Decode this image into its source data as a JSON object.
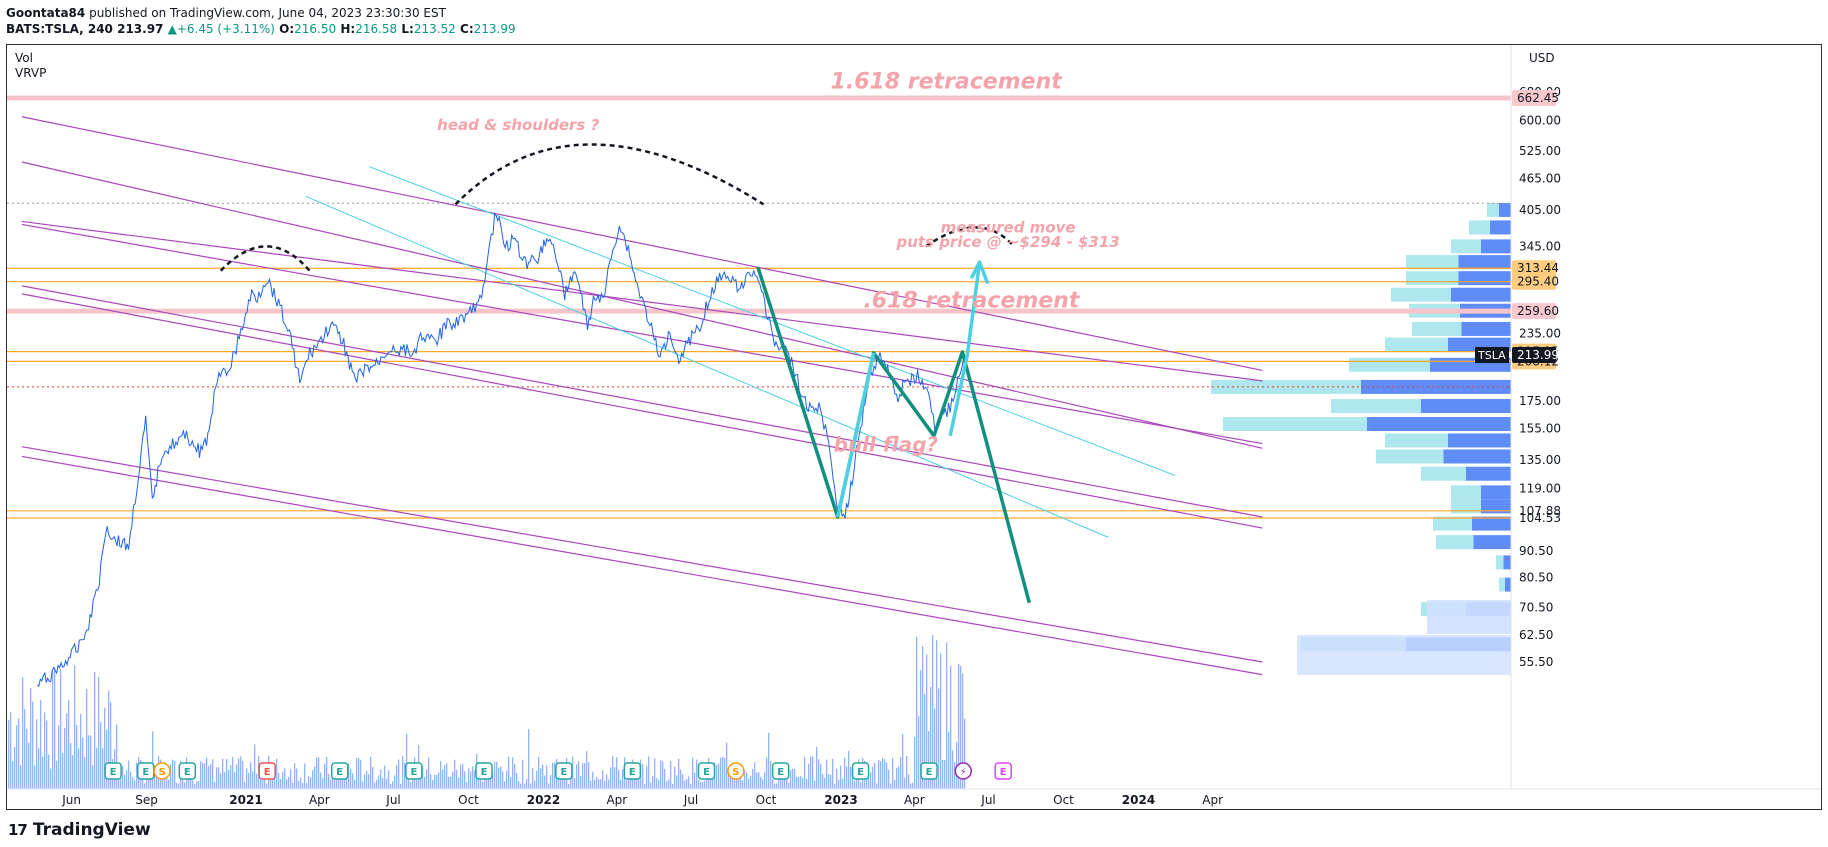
{
  "header": {
    "publisher": "Goontata84",
    "published_text": "published on TradingView.com, June 04, 2023 23:30:30 EST",
    "symbol": "BATS:TSLA, 240",
    "last": "213.97",
    "change": "+6.45 (+3.11%)",
    "open_label": "O:",
    "open": "216.50",
    "high_label": "H:",
    "high": "216.58",
    "low_label": "L:",
    "low": "213.52",
    "close_label": "C:",
    "close": "213.99"
  },
  "indicators": [
    "Vol",
    "VRVP"
  ],
  "footer": {
    "brand": "TradingView"
  },
  "chart_data": {
    "type": "line",
    "title": "",
    "currency": "USD",
    "y_scale": "log",
    "ylim": [
      50,
      760
    ],
    "y_ticks": [
      55.5,
      62.5,
      70.5,
      80.5,
      90.5,
      104.53,
      107.88,
      119,
      135,
      155,
      175,
      208.12,
      217.25,
      235,
      259.6,
      295.4,
      313.44,
      345,
      405,
      465,
      525,
      600,
      662.45,
      680
    ],
    "y_tick_labels": [
      "55.50",
      "62.50",
      "70.50",
      "80.50",
      "90.50",
      "104.53",
      "107.88",
      "119.00",
      "135.00",
      "155.00",
      "175.00",
      "208.12",
      "217.25",
      "235.00",
      "259.60",
      "295.40",
      "313.44",
      "345.00",
      "405.00",
      "465.00",
      "525.00",
      "600.00",
      "662.45",
      "680.00"
    ],
    "x_labels": [
      "Jun",
      "Sep",
      "2021",
      "Apr",
      "Jul",
      "Oct",
      "2022",
      "Apr",
      "Jul",
      "Oct",
      "2023",
      "Apr",
      "Jul",
      "Oct",
      "2024",
      "Apr"
    ],
    "x_ticks": [
      "2020-06-01",
      "2020-09-01",
      "2021-01-01",
      "2021-04-01",
      "2021-07-01",
      "2021-10-01",
      "2022-01-01",
      "2022-04-01",
      "2022-07-01",
      "2022-10-01",
      "2023-01-01",
      "2023-04-01",
      "2023-07-01",
      "2023-10-01",
      "2024-01-01",
      "2024-04-01"
    ],
    "price_series": {
      "name": "TSLA",
      "points": [
        [
          "2020-04-20",
          50
        ],
        [
          "2020-05-10",
          53
        ],
        [
          "2020-06-01",
          57
        ],
        [
          "2020-06-20",
          64
        ],
        [
          "2020-07-05",
          80
        ],
        [
          "2020-07-13",
          100
        ],
        [
          "2020-07-25",
          95
        ],
        [
          "2020-08-10",
          92
        ],
        [
          "2020-08-20",
          120
        ],
        [
          "2020-08-31",
          160
        ],
        [
          "2020-09-08",
          112
        ],
        [
          "2020-09-20",
          140
        ],
        [
          "2020-10-05",
          145
        ],
        [
          "2020-10-20",
          150
        ],
        [
          "2020-11-05",
          140
        ],
        [
          "2020-11-17",
          150
        ],
        [
          "2020-11-25",
          190
        ],
        [
          "2020-12-10",
          200
        ],
        [
          "2020-12-20",
          220
        ],
        [
          "2021-01-08",
          280
        ],
        [
          "2021-01-15",
          275
        ],
        [
          "2021-01-26",
          300
        ],
        [
          "2021-02-10",
          270
        ],
        [
          "2021-02-25",
          230
        ],
        [
          "2021-03-08",
          190
        ],
        [
          "2021-03-20",
          215
        ],
        [
          "2021-04-05",
          230
        ],
        [
          "2021-04-15",
          245
        ],
        [
          "2021-05-01",
          225
        ],
        [
          "2021-05-15",
          190
        ],
        [
          "2021-05-25",
          200
        ],
        [
          "2021-06-10",
          205
        ],
        [
          "2021-06-25",
          220
        ],
        [
          "2021-07-10",
          220
        ],
        [
          "2021-07-25",
          215
        ],
        [
          "2021-08-05",
          235
        ],
        [
          "2021-08-20",
          225
        ],
        [
          "2021-09-05",
          245
        ],
        [
          "2021-09-20",
          250
        ],
        [
          "2021-10-05",
          260
        ],
        [
          "2021-10-15",
          270
        ],
        [
          "2021-10-25",
          330
        ],
        [
          "2021-11-04",
          405
        ],
        [
          "2021-11-15",
          340
        ],
        [
          "2021-11-25",
          360
        ],
        [
          "2021-12-10",
          320
        ],
        [
          "2021-12-25",
          330
        ],
        [
          "2022-01-05",
          360
        ],
        [
          "2022-01-15",
          340
        ],
        [
          "2022-01-27",
          280
        ],
        [
          "2022-02-10",
          310
        ],
        [
          "2022-02-24",
          240
        ],
        [
          "2022-03-05",
          280
        ],
        [
          "2022-03-15",
          270
        ],
        [
          "2022-03-25",
          330
        ],
        [
          "2022-04-04",
          380
        ],
        [
          "2022-04-15",
          340
        ],
        [
          "2022-04-26",
          290
        ],
        [
          "2022-05-10",
          250
        ],
        [
          "2022-05-24",
          210
        ],
        [
          "2022-06-05",
          240
        ],
        [
          "2022-06-16",
          210
        ],
        [
          "2022-06-30",
          230
        ],
        [
          "2022-07-10",
          240
        ],
        [
          "2022-07-25",
          280
        ],
        [
          "2022-08-05",
          300
        ],
        [
          "2022-08-15",
          310
        ],
        [
          "2022-08-25",
          290
        ],
        [
          "2022-09-10",
          300
        ],
        [
          "2022-09-20",
          310
        ],
        [
          "2022-10-03",
          250
        ],
        [
          "2022-10-15",
          220
        ],
        [
          "2022-10-25",
          225
        ],
        [
          "2022-11-05",
          200
        ],
        [
          "2022-11-20",
          170
        ],
        [
          "2022-12-05",
          170
        ],
        [
          "2022-12-15",
          150
        ],
        [
          "2022-12-28",
          110
        ],
        [
          "2023-01-06",
          105
        ],
        [
          "2023-01-13",
          120
        ],
        [
          "2023-01-25",
          155
        ],
        [
          "2023-02-03",
          190
        ],
        [
          "2023-02-16",
          214
        ],
        [
          "2023-03-01",
          200
        ],
        [
          "2023-03-10",
          175
        ],
        [
          "2023-03-20",
          190
        ],
        [
          "2023-04-05",
          195
        ],
        [
          "2023-04-18",
          180
        ],
        [
          "2023-04-26",
          155
        ],
        [
          "2023-05-05",
          165
        ],
        [
          "2023-05-15",
          170
        ],
        [
          "2023-05-26",
          195
        ],
        [
          "2023-06-02",
          214
        ]
      ]
    },
    "horizontal_levels": [
      {
        "value": 662.45,
        "color": "#f7c5c9",
        "style": "band"
      },
      {
        "value": 313.44,
        "color": "#ffa726",
        "style": "line"
      },
      {
        "value": 295.4,
        "color": "#ffa726",
        "style": "line"
      },
      {
        "value": 259.6,
        "color": "#f7c5c9",
        "style": "band"
      },
      {
        "value": 217.25,
        "color": "#ffa726",
        "style": "line"
      },
      {
        "value": 208.12,
        "color": "#ffa726",
        "style": "line"
      },
      {
        "value": 186,
        "color": "#e53935",
        "style": "dotted"
      },
      {
        "value": 107.88,
        "color": "#ffa726",
        "style": "line"
      },
      {
        "value": 104.53,
        "color": "#ffa726",
        "style": "line"
      },
      {
        "value": 417,
        "color": "#9e9e9e",
        "style": "dotted"
      }
    ],
    "price_tags": [
      {
        "value": 662.45,
        "text": "662.45",
        "bg": "#f8c8cc",
        "fg": "#131722"
      },
      {
        "value": 313.44,
        "text": "313.44",
        "bg": "#ffcc80",
        "fg": "#131722"
      },
      {
        "value": 295.4,
        "text": "295.40",
        "bg": "#ffcc80",
        "fg": "#131722"
      },
      {
        "value": 259.6,
        "text": "259.60",
        "bg": "#f8c8cc",
        "fg": "#131722"
      },
      {
        "value": 217.25,
        "text": "217.25",
        "bg": "#ffcc80",
        "fg": "#131722"
      },
      {
        "value": 208.12,
        "text": "208.12",
        "bg": "#ffcc80",
        "fg": "#131722"
      }
    ],
    "last_price_tag": {
      "symbol": "TSLA",
      "value": 213.99,
      "text": "213.99"
    },
    "annotations": [
      {
        "text": "1.618 retracement",
        "x": "2023-05-10",
        "y": 690,
        "size": "large"
      },
      {
        "text": ".618 retracement",
        "x": "2023-06-10",
        "y": 264,
        "size": "large"
      },
      {
        "text": "head & shoulders ?",
        "x": "2021-12-01",
        "y": 575,
        "size": "small"
      },
      {
        "text": "measured move",
        "x": "2023-07-25",
        "y": 367,
        "size": "small"
      },
      {
        "text": "puts price @ ~$294 - $313",
        "x": "2023-07-25",
        "y": 344,
        "size": "small"
      },
      {
        "text": "bull flag?",
        "x": "2023-02-25",
        "y": 140,
        "size": "medium"
      }
    ],
    "trendlines": [
      {
        "from": [
          "2020-04-01",
          610
        ],
        "to": [
          "2024-06-01",
          200
        ],
        "color": "#ab47bc"
      },
      {
        "from": [
          "2020-04-01",
          500
        ],
        "to": [
          "2024-06-01",
          142
        ],
        "color": "#ab47bc"
      },
      {
        "from": [
          "2020-04-01",
          385
        ],
        "to": [
          "2024-06-01",
          191
        ],
        "color": "#ab47bc"
      },
      {
        "from": [
          "2020-04-01",
          380
        ],
        "to": [
          "2024-06-01",
          145
        ],
        "color": "#ab47bc"
      },
      {
        "from": [
          "2020-04-01",
          290
        ],
        "to": [
          "2024-06-01",
          105
        ],
        "color": "#ab47bc"
      },
      {
        "from": [
          "2020-04-01",
          280
        ],
        "to": [
          "2024-06-01",
          100
        ],
        "color": "#ab47bc"
      },
      {
        "from": [
          "2020-04-01",
          143
        ],
        "to": [
          "2024-06-01",
          55.5
        ],
        "color": "#ab47bc"
      },
      {
        "from": [
          "2020-04-01",
          137
        ],
        "to": [
          "2024-06-01",
          52.5
        ],
        "color": "#ab47bc"
      },
      {
        "from": [
          "2021-06-01",
          490
        ],
        "to": [
          "2024-02-15",
          126
        ],
        "color": "#4dd0e1"
      },
      {
        "from": [
          "2021-03-15",
          430
        ],
        "to": [
          "2023-11-25",
          96
        ],
        "color": "#4dd0e1"
      }
    ],
    "projection_lines": [
      {
        "points": [
          [
            "2022-09-21",
            315
          ],
          [
            "2022-12-28",
            105
          ],
          [
            "2023-02-10",
            216
          ],
          [
            "2023-04-25",
            150
          ],
          [
            "2023-05-30",
            217
          ],
          [
            "2023-08-20",
            72
          ]
        ],
        "color": "#11907f"
      },
      {
        "points": [
          [
            "2022-12-28",
            105
          ],
          [
            "2023-02-10",
            216
          ]
        ],
        "color": "#4dd0e1"
      },
      {
        "points": [
          [
            "2023-05-15",
            150
          ],
          [
            "2023-06-05",
            214
          ],
          [
            "2023-06-20",
            322
          ]
        ],
        "color": "#4dd0e1"
      },
      {
        "points": [
          [
            "2023-06-10",
            300
          ],
          [
            "2023-06-20",
            322
          ],
          [
            "2023-06-30",
            293
          ]
        ],
        "color": "#4dd0e1"
      }
    ],
    "dashed_arcs": [
      {
        "from": [
          "2020-12-01",
          310
        ],
        "peak": [
          "2021-01-26",
          345
        ],
        "to": [
          "2021-03-20",
          310
        ]
      },
      {
        "from": [
          "2021-09-15",
          415
        ],
        "peak": [
          "2022-03-01",
          540
        ],
        "to": [
          "2022-09-28",
          415
        ]
      },
      {
        "from": [
          "2023-04-15",
          345
        ],
        "peak": [
          "2023-06-15",
          375
        ],
        "to": [
          "2023-08-01",
          345
        ]
      }
    ],
    "volume_profile": {
      "bins": [
        {
          "price": 405,
          "width": 0.08
        },
        {
          "price": 375,
          "width": 0.14
        },
        {
          "price": 345,
          "width": 0.2
        },
        {
          "price": 322,
          "width": 0.35
        },
        {
          "price": 300,
          "width": 0.35
        },
        {
          "price": 279,
          "width": 0.4
        },
        {
          "price": 260,
          "width": 0.34
        },
        {
          "price": 240,
          "width": 0.33
        },
        {
          "price": 224,
          "width": 0.42
        },
        {
          "price": 205,
          "width": 0.54
        },
        {
          "price": 186,
          "width": 1.0
        },
        {
          "price": 171,
          "width": 0.6
        },
        {
          "price": 158,
          "width": 0.96
        },
        {
          "price": 147,
          "width": 0.42
        },
        {
          "price": 137,
          "width": 0.45
        },
        {
          "price": 127,
          "width": 0.3
        },
        {
          "price": 117,
          "width": 0.2
        },
        {
          "price": 110,
          "width": 0.2
        },
        {
          "price": 102,
          "width": 0.26
        },
        {
          "price": 94,
          "width": 0.25
        },
        {
          "price": 86,
          "width": 0.05
        },
        {
          "price": 78,
          "width": 0.04
        },
        {
          "price": 70,
          "width": 0.3
        },
        {
          "price": 60,
          "width": 0.7
        }
      ],
      "colors": {
        "up": "#4f7ff6",
        "down": "#a6e4ec"
      }
    },
    "volume": {
      "note": "volume histogram at chart bottom; heavier spike Jan–Jun 2023"
    },
    "events": [
      {
        "date": "2020-07-22",
        "type": "E"
      },
      {
        "date": "2020-08-31",
        "type": "E"
      },
      {
        "date": "2020-09-20",
        "type": "S"
      },
      {
        "date": "2020-10-21",
        "type": "E"
      },
      {
        "date": "2021-01-27",
        "type": "E"
      },
      {
        "date": "2021-04-26",
        "type": "E"
      },
      {
        "date": "2021-07-26",
        "type": "E"
      },
      {
        "date": "2021-10-20",
        "type": "E"
      },
      {
        "date": "2022-01-26",
        "type": "E"
      },
      {
        "date": "2022-04-20",
        "type": "E"
      },
      {
        "date": "2022-07-20",
        "type": "E"
      },
      {
        "date": "2022-08-25",
        "type": "S"
      },
      {
        "date": "2022-10-19",
        "type": "E"
      },
      {
        "date": "2023-01-25",
        "type": "E"
      },
      {
        "date": "2023-04-19",
        "type": "E"
      },
      {
        "date": "2023-05-31",
        "type": "L"
      },
      {
        "date": "2023-07-19",
        "type": "E"
      }
    ]
  }
}
